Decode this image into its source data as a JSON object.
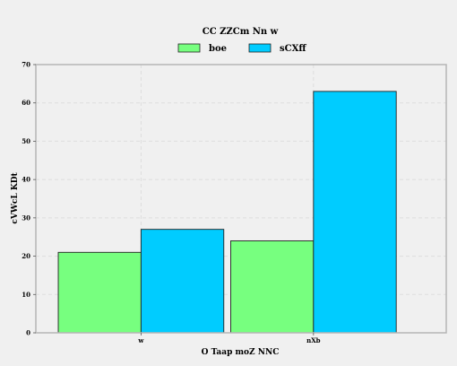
{
  "chart_data": {
    "type": "bar",
    "title": "CC   ZZCm Nn w",
    "xlabel": "O Taap moZ NNC",
    "ylabel": "cVWcL KDt",
    "categories": [
      "w",
      "nXb"
    ],
    "ylim": [
      0,
      70
    ],
    "yticks": [
      0,
      10,
      20,
      30,
      40,
      50,
      60,
      70
    ],
    "grid": true,
    "legend_position": "top-center",
    "series": [
      {
        "name": "boe",
        "values": [
          21,
          24
        ],
        "color": "#77ff7f"
      },
      {
        "name": "sCXff",
        "values": [
          27,
          63
        ],
        "color": "#00ccff"
      }
    ]
  }
}
